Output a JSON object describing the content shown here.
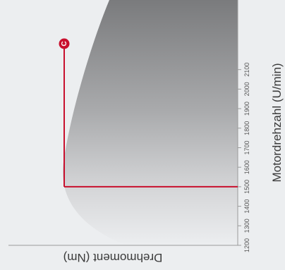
{
  "chart_data": {
    "type": "area",
    "y_axis": {
      "label": "Motordrehzahl (U/min)",
      "ticks": [
        1200,
        1300,
        1400,
        1500,
        1600,
        1700,
        1800,
        1900,
        2000,
        2100
      ],
      "range": [
        1200,
        2170
      ]
    },
    "x_axis": {
      "label": "Drehmoment (Nm)",
      "label_orientation": "upside-down"
    },
    "marker": {
      "label": "C",
      "speed": 1500
    },
    "colors": {
      "background": "#eceef0",
      "envelope_dark": "#7a7b7d",
      "envelope_light": "#eceef0",
      "marker_line": "#c8102e",
      "axis": "#9a9a9a"
    }
  }
}
